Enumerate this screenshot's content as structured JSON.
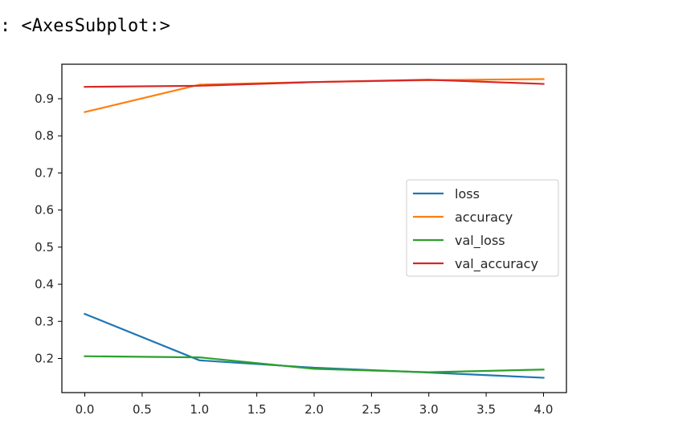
{
  "output": {
    "prompt_marker": ":",
    "repr_text": "<AxesSubplot:>"
  },
  "chart_data": {
    "type": "line",
    "x": [
      0,
      1,
      2,
      3,
      4
    ],
    "series": [
      {
        "name": "loss",
        "color": "#1f77b4",
        "values": [
          0.32,
          0.195,
          0.175,
          0.162,
          0.148
        ]
      },
      {
        "name": "accuracy",
        "color": "#ff7f0e",
        "values": [
          0.864,
          0.938,
          0.945,
          0.95,
          0.953
        ]
      },
      {
        "name": "val_loss",
        "color": "#2ca02c",
        "values": [
          0.206,
          0.203,
          0.172,
          0.163,
          0.17
        ]
      },
      {
        "name": "val_accuracy",
        "color": "#d62728",
        "values": [
          0.932,
          0.935,
          0.945,
          0.951,
          0.94
        ]
      }
    ],
    "xticks": [
      0.0,
      0.5,
      1.0,
      1.5,
      2.0,
      2.5,
      3.0,
      3.5,
      4.0
    ],
    "xtick_labels": [
      "0.0",
      "0.5",
      "1.0",
      "1.5",
      "2.0",
      "2.5",
      "3.0",
      "3.5",
      "4.0"
    ],
    "yticks": [
      0.2,
      0.3,
      0.4,
      0.5,
      0.6,
      0.7,
      0.8,
      0.9
    ],
    "ytick_labels": [
      "0.2",
      "0.3",
      "0.4",
      "0.5",
      "0.6",
      "0.7",
      "0.8",
      "0.9"
    ],
    "xlim": [
      -0.2,
      4.2
    ],
    "ylim": [
      0.108,
      0.993
    ],
    "title": "",
    "xlabel": "",
    "ylabel": "",
    "grid": false,
    "legend_position": "center-right"
  }
}
